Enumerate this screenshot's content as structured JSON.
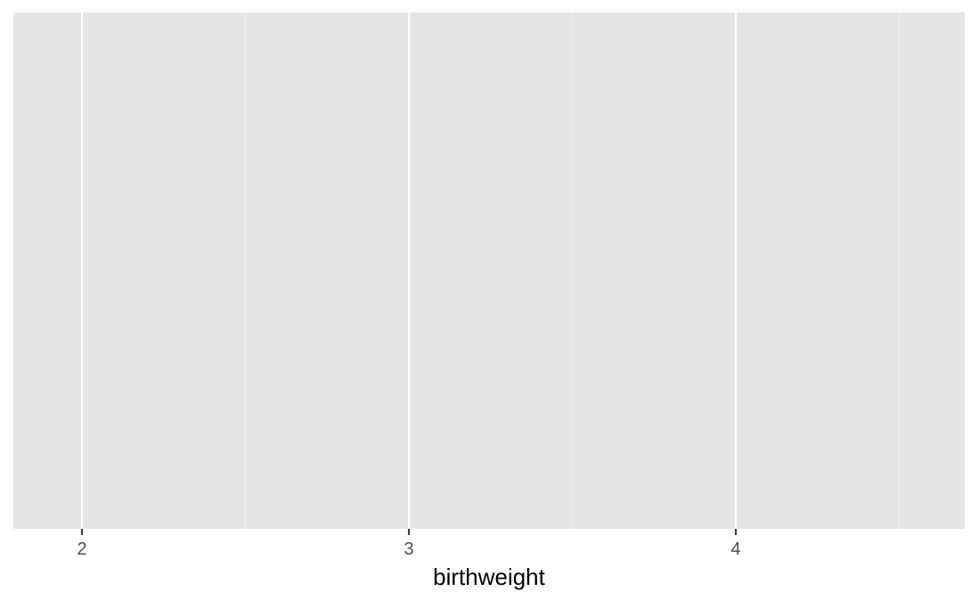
{
  "chart_data": {
    "type": "scatter",
    "title": "",
    "xlabel": "birthweight",
    "ylabel": "",
    "xlim": [
      1.79,
      4.7
    ],
    "x_major_ticks": [
      2,
      3,
      4
    ],
    "x_tick_labels": [
      "2",
      "3",
      "4"
    ],
    "x_minor_gridlines": [
      2.5,
      3.5,
      4.5
    ],
    "y_axis_shown": false,
    "grid": true,
    "legend": "none",
    "series": [
      {
        "x": [],
        "y": []
      }
    ],
    "colors": {
      "panel_background": "#e5e5e5",
      "grid_major": "#ffffff",
      "grid_minor": "#f2f2f2",
      "tick_mark": "#333333",
      "tick_label": "#4d4d4d",
      "axis_title": "#000000"
    }
  }
}
